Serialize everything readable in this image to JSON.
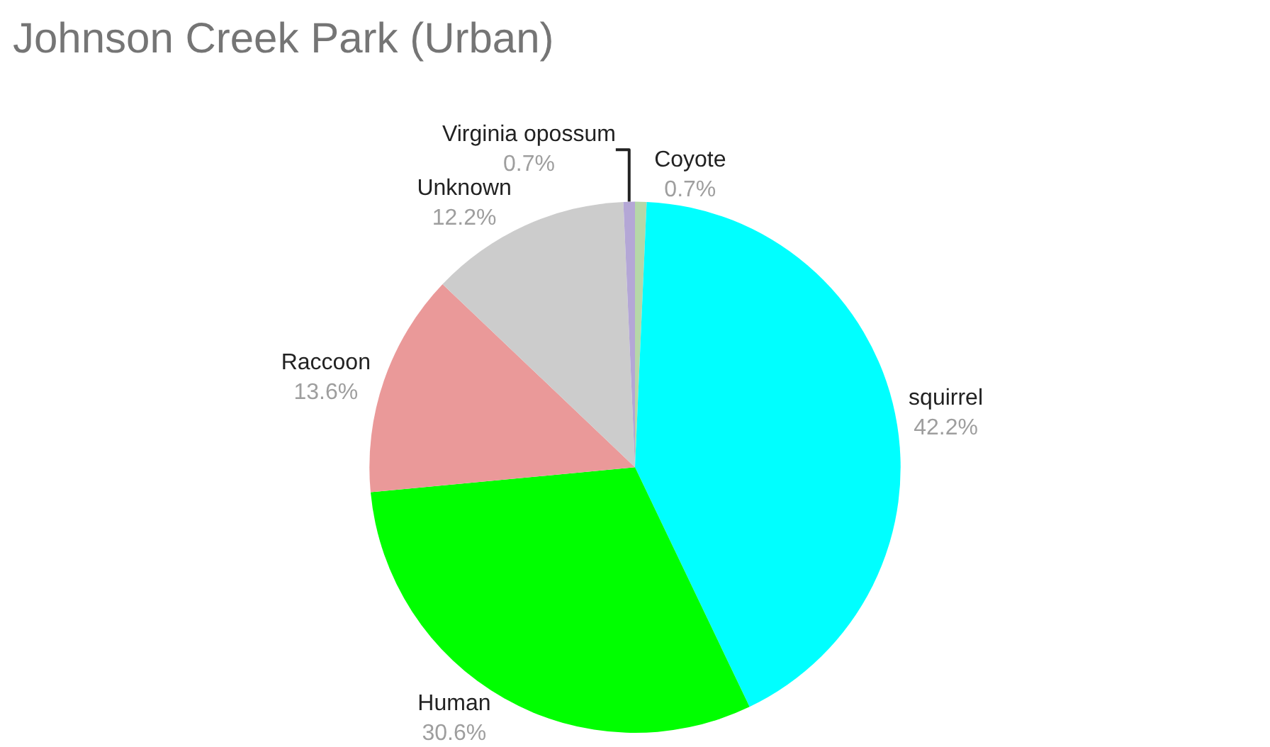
{
  "chart_data": {
    "type": "pie",
    "title": "Johnson Creek Park (Urban)",
    "categories": [
      "Coyote",
      "squirrel",
      "Human",
      "Raccoon",
      "Unknown",
      "Virginia opossum"
    ],
    "values": [
      0.7,
      42.2,
      30.6,
      13.6,
      12.2,
      0.7
    ],
    "colors": [
      "#b6d7a8",
      "#00ffff",
      "#00ff00",
      "#ea9999",
      "#cccccc",
      "#b4a7d6"
    ],
    "value_labels": [
      "0.7%",
      "42.2%",
      "30.6%",
      "13.6%",
      "12.2%",
      "0.7%"
    ],
    "legend": false
  }
}
